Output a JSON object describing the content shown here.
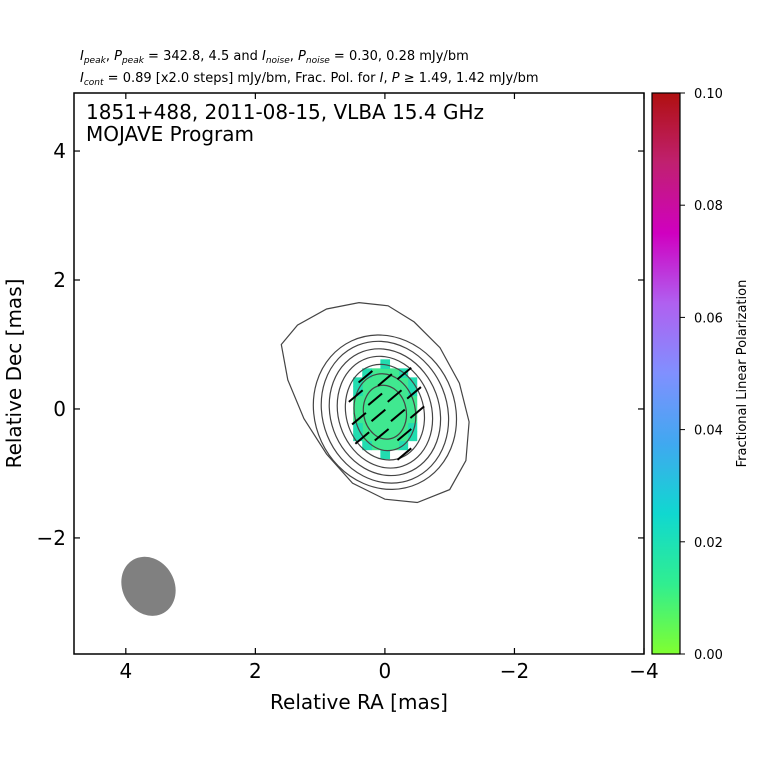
{
  "header": {
    "line1": {
      "ipeak_sym": "I",
      "ipeak_sub": "peak",
      "sep1": ", ",
      "ppeak_sym": "P",
      "ppeak_sub": "peak",
      "mid1": " = 342.8, 4.5 and ",
      "inoise_sym": "I",
      "inoise_sub": "noise",
      "sep2": ", ",
      "pnoise_sym": "P",
      "pnoise_sub": "noise",
      "end1": " = 0.30, 0.28 mJy/bm"
    },
    "line2": {
      "icont_sym": "I",
      "icont_sub": "cont",
      "mid2": " = 0.89 [x2.0 steps] mJy/bm, Frac. Pol. for ",
      "i_sym": "I",
      "comma": ", ",
      "p_sym": "P",
      "end2": " ≥ 1.49, 1.42 mJy/bm"
    }
  },
  "chart_data": {
    "type": "contour",
    "title_lines": [
      "1851+488, 2011-08-15, VLBA 15.4 GHz",
      "MOJAVE Program"
    ],
    "xlabel": "Relative RA [mas]",
    "ylabel": "Relative Dec [mas]",
    "xlim": [
      4.8,
      -4.0
    ],
    "ylim": [
      -3.8,
      4.9
    ],
    "xticks": [
      4,
      2,
      0,
      -2,
      -4
    ],
    "xticklabels": [
      "4",
      "2",
      "0",
      "−2",
      "−4"
    ],
    "yticks": [
      4,
      2,
      0,
      -2
    ],
    "yticklabels": [
      "4",
      "2",
      "0",
      "−2"
    ],
    "contours": {
      "center": [
        0.0,
        -0.05
      ],
      "color": "#444444",
      "levels_mJy": [
        0.89,
        1.78,
        3.56,
        7.12,
        14.24,
        28.48,
        56.96,
        113.92,
        227.84
      ],
      "outer_polygon": [
        [
          1.6,
          1.0
        ],
        [
          1.35,
          1.3
        ],
        [
          0.9,
          1.55
        ],
        [
          0.4,
          1.65
        ],
        [
          -0.05,
          1.6
        ],
        [
          -0.45,
          1.35
        ],
        [
          -0.85,
          0.95
        ],
        [
          -1.15,
          0.4
        ],
        [
          -1.3,
          -0.2
        ],
        [
          -1.25,
          -0.8
        ],
        [
          -1.0,
          -1.25
        ],
        [
          -0.5,
          -1.45
        ],
        [
          0.0,
          -1.4
        ],
        [
          0.5,
          -1.15
        ],
        [
          0.9,
          -0.7
        ],
        [
          1.25,
          -0.15
        ],
        [
          1.5,
          0.45
        ]
      ],
      "inner_ellipses": [
        {
          "a": 1.08,
          "b": 1.22,
          "angle_deg": -25
        },
        {
          "a": 0.96,
          "b": 1.12,
          "angle_deg": -22
        },
        {
          "a": 0.84,
          "b": 1.0,
          "angle_deg": -20
        },
        {
          "a": 0.72,
          "b": 0.88,
          "angle_deg": -18
        },
        {
          "a": 0.6,
          "b": 0.75,
          "angle_deg": -15
        },
        {
          "a": 0.47,
          "b": 0.6,
          "angle_deg": -12
        },
        {
          "a": 0.33,
          "b": 0.42,
          "angle_deg": -10
        }
      ]
    },
    "fractional_polarization": {
      "cell_size_mas": 0.14,
      "fill_color_main": "#40e890",
      "fill_color_edge": "#22dcb0",
      "region_center": [
        0.0,
        0.0
      ],
      "region_semi_axes": [
        0.55,
        0.72
      ]
    },
    "evpa_ticks": [
      {
        "x": 0.3,
        "y": 0.5
      },
      {
        "x": 0.0,
        "y": 0.45
      },
      {
        "x": -0.3,
        "y": 0.55
      },
      {
        "x": 0.45,
        "y": 0.2
      },
      {
        "x": 0.15,
        "y": 0.15
      },
      {
        "x": -0.15,
        "y": 0.2
      },
      {
        "x": -0.45,
        "y": 0.25
      },
      {
        "x": 0.4,
        "y": -0.15
      },
      {
        "x": 0.1,
        "y": -0.1
      },
      {
        "x": -0.2,
        "y": -0.1
      },
      {
        "x": -0.5,
        "y": -0.05
      },
      {
        "x": 0.35,
        "y": -0.45
      },
      {
        "x": 0.05,
        "y": -0.4
      },
      {
        "x": -0.3,
        "y": -0.4
      },
      {
        "x": -0.3,
        "y": -0.7
      }
    ],
    "evpa_angle_deg": 40,
    "beam": {
      "x": 3.65,
      "y": -2.75,
      "major_mas": 0.95,
      "minor_mas": 0.8,
      "angle_deg": -30,
      "color": "#808080"
    },
    "colorbar": {
      "label": "Fractional Linear Polarization",
      "min": 0.0,
      "max": 0.1,
      "ticks": [
        0.0,
        0.02,
        0.04,
        0.06,
        0.08,
        0.1
      ],
      "ticklabels": [
        "0.00",
        "0.02",
        "0.04",
        "0.06",
        "0.08",
        "0.10"
      ],
      "colors": [
        "#80ff30",
        "#30ee90",
        "#10d8d0",
        "#40a8f0",
        "#8090ff",
        "#b060f0",
        "#d000c0",
        "#c02070",
        "#b01010"
      ]
    }
  }
}
